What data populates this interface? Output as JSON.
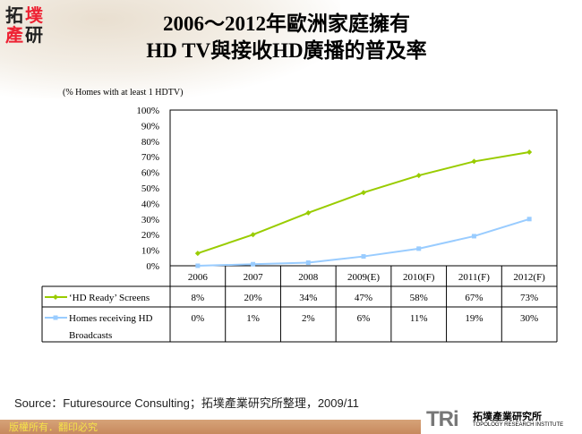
{
  "logo": {
    "chars": [
      "拓",
      "墣",
      "產",
      "研"
    ]
  },
  "title": {
    "line1": "2006～2012年歐洲家庭擁有",
    "line2": "HD TV與接收HD廣播的普及率"
  },
  "chart_data": {
    "type": "line",
    "ylabel": "(% Homes with at least 1 HDTV)",
    "categories": [
      "2006",
      "2007",
      "2008",
      "2009(E)",
      "2010(F)",
      "2011(F)",
      "2012(F)"
    ],
    "ylim": [
      0,
      100
    ],
    "yticks": [
      "0%",
      "10%",
      "20%",
      "30%",
      "40%",
      "50%",
      "60%",
      "70%",
      "80%",
      "90%",
      "100%"
    ],
    "grid": false,
    "legend": "data-table",
    "series": [
      {
        "name": "‘HD Ready’ Screens",
        "values": [
          8,
          20,
          34,
          47,
          58,
          67,
          73
        ],
        "labels": [
          "8%",
          "20%",
          "34%",
          "47%",
          "58%",
          "67%",
          "73%"
        ],
        "color": "#99cc00",
        "marker": "diamond"
      },
      {
        "name": "Homes receiving HD Broadcasts",
        "values": [
          0,
          1,
          2,
          6,
          11,
          19,
          30
        ],
        "labels": [
          "0%",
          "1%",
          "2%",
          "6%",
          "11%",
          "19%",
          "30%"
        ],
        "color": "#99ccff",
        "marker": "square"
      }
    ]
  },
  "source": "Source：Futuresource Consulting；拓墣產業研究所整理，2009/11",
  "footer": {
    "copyright": "版權所有．翻印必究",
    "brand_mark": "TRi",
    "brand_zh": "拓墣產業研究所",
    "brand_en": "TOPOLOGY RESEARCH INSTITUTE"
  }
}
